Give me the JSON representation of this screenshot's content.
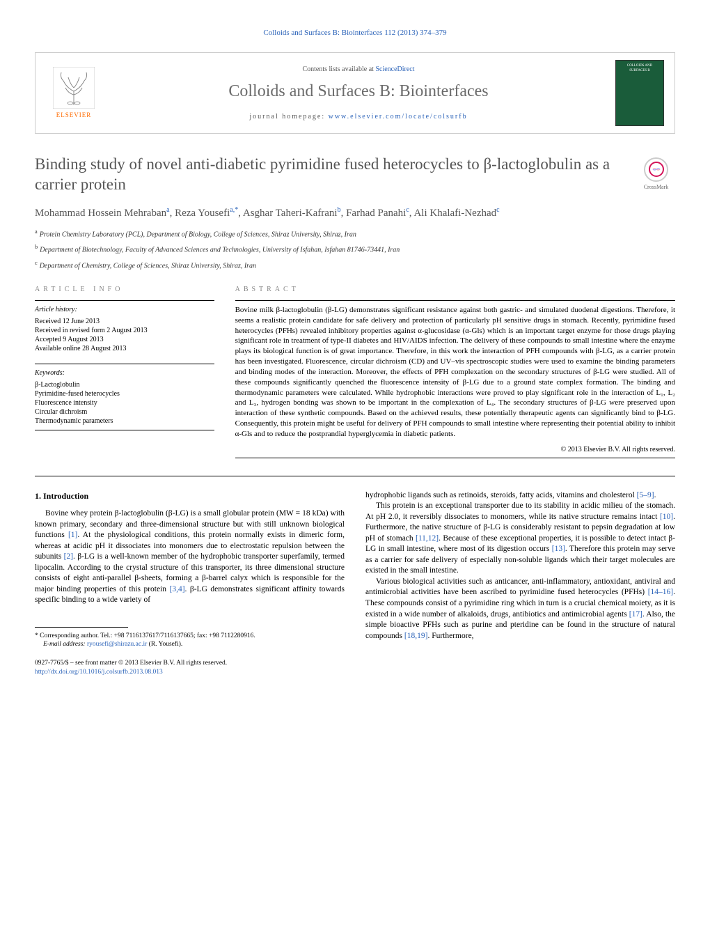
{
  "header": {
    "citation_link": "Colloids and Surfaces B: Biointerfaces 112 (2013) 374–379",
    "contents_text": "Contents lists available at ",
    "contents_link": "ScienceDirect",
    "journal_name": "Colloids and Surfaces B: Biointerfaces",
    "homepage_label": "journal homepage: ",
    "homepage_url": "www.elsevier.com/locate/colsurfb",
    "elsevier_label": "ELSEVIER",
    "cover_text": "COLLOIDS AND SURFACES B"
  },
  "title": "Binding study of novel anti-diabetic pyrimidine fused heterocycles to β-lactoglobulin as a carrier protein",
  "crossmark_label": "CrossMark",
  "authors_html": "Mohammad Hossein Mehraban<sup>a</sup>, Reza Yousefi<sup>a,*</sup>, Asghar Taheri-Kafrani<sup>b</sup>, Farhad Panahi<sup>c</sup>, Ali Khalafi-Nezhad<sup>c</sup>",
  "affiliations": [
    {
      "sup": "a",
      "text": "Protein Chemistry Laboratory (PCL), Department of Biology, College of Sciences, Shiraz University, Shiraz, Iran"
    },
    {
      "sup": "b",
      "text": "Department of Biotechnology, Faculty of Advanced Sciences and Technologies, University of Isfahan, Isfahan 81746-73441, Iran"
    },
    {
      "sup": "c",
      "text": "Department of Chemistry, College of Sciences, Shiraz University, Shiraz, Iran"
    }
  ],
  "article_info": {
    "heading": "ARTICLE INFO",
    "history_title": "Article history:",
    "history": [
      "Received 12 June 2013",
      "Received in revised form 2 August 2013",
      "Accepted 9 August 2013",
      "Available online 28 August 2013"
    ],
    "keywords_title": "Keywords:",
    "keywords": [
      "β-Lactoglobulin",
      "Pyrimidine-fused heterocycles",
      "Fluorescence intensity",
      "Circular dichroism",
      "Thermodynamic parameters"
    ]
  },
  "abstract": {
    "heading": "ABSTRACT",
    "text": "Bovine milk β-lactoglobulin (β-LG) demonstrates significant resistance against both gastric- and simulated duodenal digestions. Therefore, it seems a realistic protein candidate for safe delivery and protection of particularly pH sensitive drugs in stomach. Recently, pyrimidine fused heterocycles (PFHs) revealed inhibitory properties against α-glucosidase (α-Gls) which is an important target enzyme for those drugs playing significant role in treatment of type-II diabetes and HIV/AIDS infection. The delivery of these compounds to small intestine where the enzyme plays its biological function is of great importance. Therefore, in this work the interaction of PFH compounds with β-LG, as a carrier protein has been investigated. Fluorescence, circular dichroism (CD) and UV–vis spectroscopic studies were used to examine the binding parameters and binding modes of the interaction. Moreover, the effects of PFH complexation on the secondary structures of β-LG were studied. All of these compounds significantly quenched the fluorescence intensity of β-LG due to a ground state complex formation. The binding and thermodynamic parameters were calculated. While hydrophobic interactions were proved to play significant role in the interaction of L₁, L₂ and L₃, hydrogen bonding was shown to be important in the complexation of L₄. The secondary structures of β-LG were preserved upon interaction of these synthetic compounds. Based on the achieved results, these potentially therapeutic agents can significantly bind to β-LG. Consequently, this protein might be useful for delivery of PFH compounds to small intestine where representing their potential ability to inhibit α-Gls and to reduce the postprandial hyperglycemia in diabetic patients.",
    "copyright": "© 2013 Elsevier B.V. All rights reserved."
  },
  "body": {
    "intro_heading": "1. Introduction",
    "col1_p1": "Bovine whey protein β-lactoglobulin (β-LG) is a small globular protein (MW = 18 kDa) with known primary, secondary and three-dimensional structure but with still unknown biological functions ",
    "col1_ref1": "[1]",
    "col1_p1b": ". At the physiological conditions, this protein normally exists in dimeric form, whereas at acidic pH it dissociates into monomers due to electrostatic repulsion between the subunits ",
    "col1_ref2": "[2]",
    "col1_p1c": ". β-LG is a well-known member of the hydrophobic transporter superfamily, termed lipocalin. According to the crystal structure of this transporter, its three dimensional structure consists of eight anti-parallel β-sheets, forming a β-barrel calyx which is responsible for the major binding properties of this protein ",
    "col1_ref3": "[3,4]",
    "col1_p1d": ". β-LG demonstrates significant affinity towards specific binding to a wide variety of",
    "col2_p1a": "hydrophobic ligands such as retinoids, steroids, fatty acids, vitamins and cholesterol ",
    "col2_ref1": "[5–9]",
    "col2_p1b": ".",
    "col2_p2a": "This protein is an exceptional transporter due to its stability in acidic milieu of the stomach. At pH 2.0, it reversibly dissociates to monomers, while its native structure remains intact ",
    "col2_ref2": "[10]",
    "col2_p2b": ". Furthermore, the native structure of β-LG is considerably resistant to pepsin degradation at low pH of stomach ",
    "col2_ref3": "[11,12]",
    "col2_p2c": ". Because of these exceptional properties, it is possible to detect intact β-LG in small intestine, where most of its digestion occurs ",
    "col2_ref4": "[13]",
    "col2_p2d": ". Therefore this protein may serve as a carrier for safe delivery of especially non-soluble ligands which their target molecules are existed in the small intestine.",
    "col2_p3a": "Various biological activities such as anticancer, anti-inflammatory, antioxidant, antiviral and antimicrobial activities have been ascribed to pyrimidine fused heterocycles (PFHs) ",
    "col2_ref5": "[14–16]",
    "col2_p3b": ". These compounds consist of a pyrimidine ring which in turn is a crucial chemical moiety, as it is existed in a wide number of alkaloids, drugs, antibiotics and antimicrobial agents ",
    "col2_ref6": "[17]",
    "col2_p3c": ". Also, the simple bioactive PFHs such as purine and pteridine can be found in the structure of natural compounds ",
    "col2_ref7": "[18,19]",
    "col2_p3d": ". Furthermore,"
  },
  "footnote": {
    "corr_label": "* Corresponding author. Tel.: +98 7116137617/7116137665; fax: +98 7112280916.",
    "email_label": "E-mail address: ",
    "email": "ryousefi@shirazu.ac.ir",
    "email_suffix": " (R. Yousefi)."
  },
  "footer": {
    "issn": "0927-7765/$ – see front matter © 2013 Elsevier B.V. All rights reserved.",
    "doi": "http://dx.doi.org/10.1016/j.colsurfb.2013.08.013"
  },
  "colors": {
    "link": "#2a62b8",
    "title_gray": "#555555",
    "elsevier_orange": "#ff6b00",
    "cover_bg": "#1a5c3a"
  }
}
